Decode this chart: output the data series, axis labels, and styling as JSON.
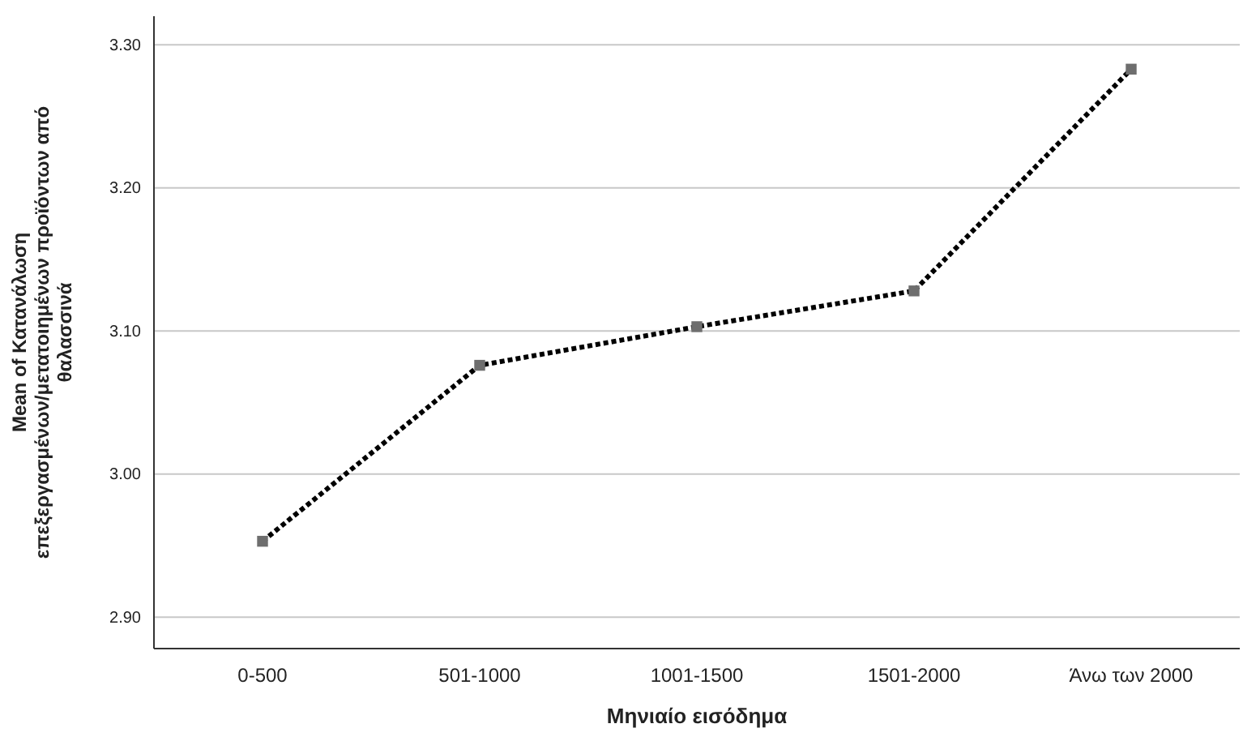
{
  "chart_data": {
    "type": "line",
    "xlabel": "Μηνιαίο εισόδημα",
    "ylabel": "Mean of Κατανάλωση επεξεργασμένων/μετατοιημένων προϊόντων από θαλασσινά",
    "categories": [
      "0-500",
      "501-1000",
      "1001-1500",
      "1501-2000",
      "Άνω των 2000"
    ],
    "series": [
      {
        "color": "#000000",
        "values": [
          2.953,
          3.076,
          3.103,
          3.128,
          3.283
        ]
      }
    ],
    "ylim": [
      2.878,
      3.32
    ],
    "yticks": [
      {
        "value": 2.9,
        "label": "2.90"
      },
      {
        "value": 3.0,
        "label": "3.00"
      },
      {
        "value": 3.1,
        "label": "3.10"
      },
      {
        "value": 3.2,
        "label": "3.20"
      },
      {
        "value": 3.3,
        "label": "3.30"
      }
    ],
    "grid": "y",
    "marker": "square",
    "line_style": "dotted"
  }
}
